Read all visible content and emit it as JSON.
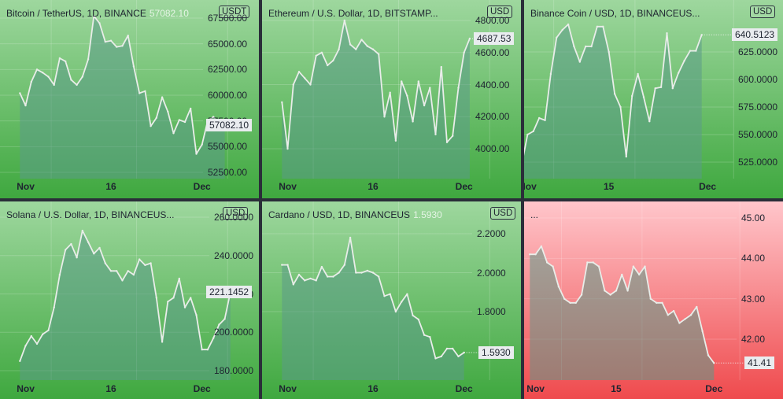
{
  "chart_data": [
    {
      "type": "area",
      "title": "Bitcoin / TetherUS, 1D, BINANCE",
      "last_value_label": "57082.10",
      "currency": "USDT",
      "price_label": "57082.10",
      "ylim": [
        51500,
        68300
      ],
      "y_ticks": [
        {
          "value": 52500,
          "label": "52500.00"
        },
        {
          "value": 55000,
          "label": "55000.00"
        },
        {
          "value": 57500,
          "label": "57500.00"
        },
        {
          "value": 60000,
          "label": "60000.00"
        },
        {
          "value": 62500,
          "label": "62500.00"
        },
        {
          "value": 65000,
          "label": "65000.00"
        },
        {
          "value": 67500,
          "label": "67500.00"
        }
      ],
      "x_ticks": [
        {
          "value": 1,
          "label": "Nov"
        },
        {
          "value": 16,
          "label": "16"
        },
        {
          "value": 32,
          "label": "Dec"
        }
      ],
      "x_range": [
        -3.5,
        42.0
      ],
      "theme": "green",
      "values": [
        60200,
        59000,
        61300,
        62500,
        62200,
        61800,
        61000,
        63600,
        63300,
        61500,
        61000,
        61800,
        63500,
        67700,
        67000,
        65200,
        65300,
        64700,
        64800,
        65800,
        62800,
        60200,
        60400,
        57000,
        57800,
        59800,
        58400,
        56300,
        57600,
        57400,
        58700,
        54300,
        55200,
        57500,
        57900,
        57000,
        57082
      ]
    },
    {
      "type": "area",
      "title": "Ethereum / U.S. Dollar, 1D, BITSTAMP...",
      "currency": "USD",
      "price_label": "4687.53",
      "ylim": [
        3680,
        4880
      ],
      "y_ticks": [
        {
          "value": 4000,
          "label": "4000.00"
        },
        {
          "value": 4200,
          "label": "4200.00"
        },
        {
          "value": 4400,
          "label": "4400.00"
        },
        {
          "value": 4600,
          "label": "4600.00"
        },
        {
          "value": 4800,
          "label": "4800.00"
        }
      ],
      "x_ticks": [
        {
          "value": 1,
          "label": "Nov"
        },
        {
          "value": 16,
          "label": "16"
        },
        {
          "value": 32,
          "label": "Dec"
        }
      ],
      "x_range": [
        -3.5,
        42.0
      ],
      "theme": "green",
      "values": [
        4290,
        4000,
        4400,
        4480,
        4440,
        4400,
        4580,
        4600,
        4520,
        4550,
        4620,
        4800,
        4650,
        4620,
        4680,
        4640,
        4620,
        4590,
        4200,
        4350,
        4050,
        4420,
        4330,
        4170,
        4420,
        4270,
        4380,
        4090,
        4510,
        4040,
        4080,
        4380,
        4600,
        4687
      ]
    },
    {
      "type": "area",
      "title": "Binance Coin / USD, 1D, BINANCEUS...",
      "currency": "USD",
      "price_label": "640.5123",
      "ylim": [
        510,
        654
      ],
      "y_ticks": [
        {
          "value": 525,
          "label": "525.0000"
        },
        {
          "value": 550,
          "label": "550.0000"
        },
        {
          "value": 575,
          "label": "575.0000"
        },
        {
          "value": 600,
          "label": "600.0000"
        },
        {
          "value": 625,
          "label": "625.0000"
        }
      ],
      "x_ticks": [
        {
          "value": 1,
          "label": "Nov"
        },
        {
          "value": 15,
          "label": "15"
        },
        {
          "value": 32,
          "label": "Dec"
        }
      ],
      "x_range": [
        0.4,
        45.0
      ],
      "theme": "green",
      "values": [
        523,
        550,
        553,
        565,
        563,
        605,
        638,
        645,
        650,
        630,
        616,
        630,
        630,
        648,
        648,
        625,
        587,
        575,
        530,
        585,
        605,
        584,
        562,
        592,
        593,
        642,
        592,
        606,
        617,
        626,
        626,
        640.5
      ]
    },
    {
      "type": "area",
      "title": "Solana / U.S. Dollar, 1D, BINANCEUS...",
      "currency": "USD",
      "price_label": "221.1452",
      "ylim": [
        174,
        257
      ],
      "y_ticks": [
        {
          "value": 180,
          "label": "180.0000"
        },
        {
          "value": 200,
          "label": "200.0000"
        },
        {
          "value": 220,
          "label": "220.0000"
        },
        {
          "value": 240,
          "label": "240.0000"
        },
        {
          "value": 260,
          "label": "260.0000"
        }
      ],
      "x_ticks": [
        {
          "value": 1,
          "label": "Nov"
        },
        {
          "value": 16,
          "label": "16"
        },
        {
          "value": 32,
          "label": "Dec"
        }
      ],
      "x_range": [
        -3.5,
        42.0
      ],
      "theme": "green",
      "values": [
        185,
        193,
        198,
        194,
        199,
        201,
        213,
        230,
        243,
        246,
        239,
        253,
        247,
        241,
        244,
        236,
        232,
        232,
        227,
        232,
        230,
        238,
        235,
        236,
        218,
        195,
        216,
        218,
        228,
        213,
        218,
        209,
        191,
        191,
        197,
        204,
        207,
        221
      ]
    },
    {
      "type": "area",
      "title": "Cardano / USD, 1D, BINANCEUS",
      "last_value_label": "1.5930",
      "currency": "USD",
      "price_label": "1.5930",
      "ylim": [
        1.45,
        2.3
      ],
      "y_ticks": [
        {
          "value": 1.8,
          "label": "1.8000"
        },
        {
          "value": 2.0,
          "label": "2.0000"
        },
        {
          "value": 2.2,
          "label": "2.2000"
        }
      ],
      "x_ticks": [
        {
          "value": 1,
          "label": "Nov"
        },
        {
          "value": 16,
          "label": "16"
        },
        {
          "value": 32,
          "label": "Dec"
        }
      ],
      "x_range": [
        -3.5,
        42.0
      ],
      "theme": "green",
      "values": [
        2.04,
        2.04,
        1.94,
        1.99,
        1.96,
        1.97,
        1.96,
        2.03,
        1.98,
        1.98,
        2.0,
        2.04,
        2.18,
        2.0,
        2.0,
        2.01,
        2.0,
        1.98,
        1.88,
        1.89,
        1.8,
        1.85,
        1.89,
        1.78,
        1.76,
        1.68,
        1.67,
        1.56,
        1.57,
        1.61,
        1.61,
        1.57,
        1.59
      ]
    },
    {
      "type": "area",
      "title": "...",
      "currency": "",
      "price_label": "41.41",
      "ylim": [
        41.4,
        45.28
      ],
      "y_ticks": [
        {
          "value": 42.0,
          "label": "42.00"
        },
        {
          "value": 43.0,
          "label": "43.00"
        },
        {
          "value": 44.0,
          "label": "44.00"
        },
        {
          "value": 45.0,
          "label": "45.00"
        }
      ],
      "x_ticks": [
        {
          "value": 1,
          "label": "Nov"
        },
        {
          "value": 15,
          "label": "15"
        },
        {
          "value": 32,
          "label": "Dec"
        }
      ],
      "x_range": [
        -1.0,
        44.0
      ],
      "theme": "red",
      "values": [
        44.1,
        44.1,
        44.3,
        43.9,
        43.8,
        43.3,
        43.0,
        42.9,
        42.9,
        43.1,
        43.9,
        43.9,
        43.8,
        43.2,
        43.1,
        43.2,
        43.6,
        43.2,
        43.8,
        43.6,
        43.8,
        43.0,
        42.9,
        42.9,
        42.6,
        42.7,
        42.4,
        42.5,
        42.6,
        42.8,
        42.2,
        41.6,
        41.41
      ]
    }
  ],
  "colors": {
    "green_top": "#9ed79e",
    "green_bottom": "#3fa83f",
    "red_top": "#ffc6cb",
    "red_bottom": "#ef4a4d",
    "line": "#e9ede9",
    "area_fill": "#5b9b88",
    "divider": "#2a2e39",
    "text": "#1e2430"
  }
}
